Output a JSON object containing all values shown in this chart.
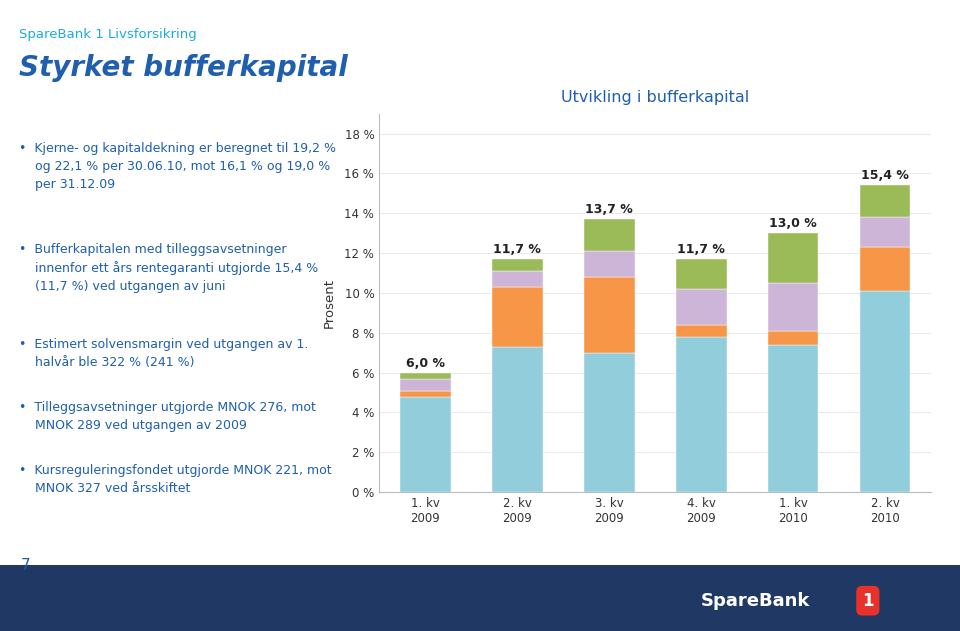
{
  "title": "Utvikling i bufferkapital",
  "ylabel": "Prosent",
  "categories": [
    "1. kv\n2009",
    "2. kv\n2009",
    "3. kv\n2009",
    "4. kv\n2009",
    "1. kv\n2010",
    "2. kv\n2010"
  ],
  "totals": [
    6.0,
    11.7,
    13.7,
    11.7,
    13.0,
    15.4
  ],
  "segments": {
    "Kjernekap. utover minstekrav": [
      4.8,
      7.3,
      7.0,
      7.8,
      7.4,
      10.1
    ],
    "Delårsresultat": [
      0.3,
      3.0,
      3.8,
      0.6,
      0.7,
      2.2
    ],
    "Tilleggsavsetninger": [
      0.6,
      0.8,
      1.3,
      1.8,
      2.4,
      1.5
    ],
    "Kursreguleringsfond": [
      0.3,
      0.6,
      1.6,
      1.5,
      2.5,
      1.6
    ]
  },
  "colors": {
    "Kjernekap. utover minstekrav": "#92CDDC",
    "Delårsresultat": "#F79646",
    "Tilleggsavsetninger": "#CDB5D8",
    "Kursreguleringsfond": "#9BBB59"
  },
  "ylim": [
    0,
    19
  ],
  "yticks": [
    0,
    2,
    4,
    6,
    8,
    10,
    12,
    14,
    16,
    18
  ],
  "ytick_labels": [
    "0 %",
    "2 %",
    "4 %",
    "6 %",
    "8 %",
    "10 %",
    "12 %",
    "14 %",
    "16 %",
    "18 %"
  ],
  "title_color": "#1F5FAD",
  "bar_width": 0.55,
  "total_label_fontsize": 9,
  "background_color": "#FFFFFF",
  "chart_bg": "#FFFFFF",
  "header_line1": "SpareBank 1 Livsforsikring",
  "header_line1_color": "#1BAAE1",
  "header_line2": "Styrket bufferkapital",
  "header_line2_color": "#1F5FAD",
  "bullets": [
    "Kjerne- og kapitaldekning er beregnet til 19,2 %\nog 22,1 % per 30.06.10, mot 16,1 % og 19,0 %\nper 31.12.09",
    "Bufferkapitalen med tilleggsavsetninger\ninnenfor ett års rentegaranti utgjorde 15,4 %\n(11,7 %) ved utgangen av juni",
    "Estimert solvensmargin ved utgangen av 1.\nhalvår ble 322 % (241 %)",
    "Tilleggsavsetninger utgjorde MNOK 276, mot\nMNOK 289 ved utgangen av 2009",
    "Kursreguleringsfondet utgjorde MNOK 221, mot\nMNOK 327 ved årsskiftet"
  ],
  "bullet_color": "#1F5FAD",
  "page_number": "7",
  "banner_color": "#1F3864",
  "logo_text": "SpareBank",
  "logo_num": "1",
  "logo_num_color": "#E8312A"
}
